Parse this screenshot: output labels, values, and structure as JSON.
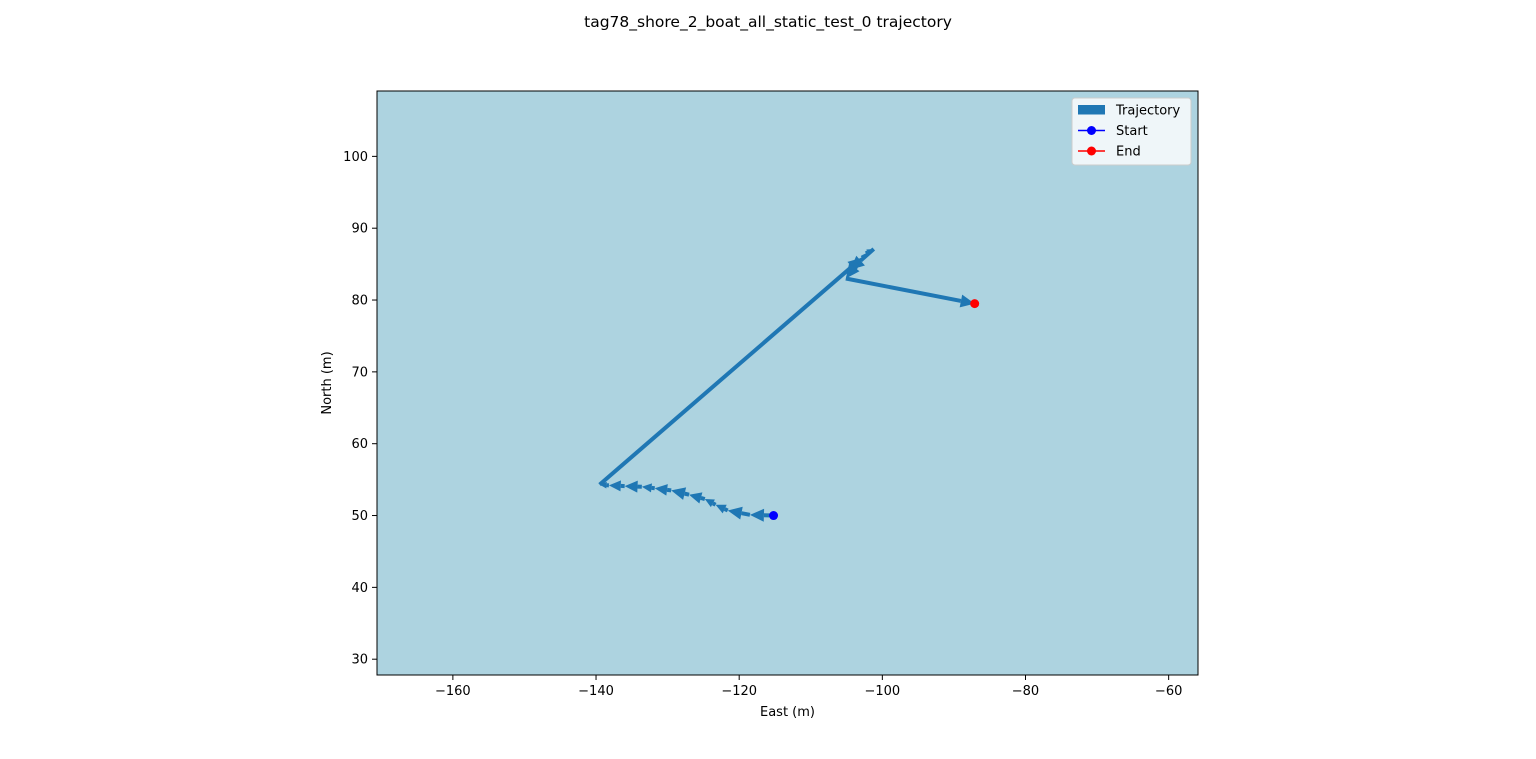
{
  "chart_data": {
    "type": "line",
    "title": "tag78_shore_2_boat_all_static_test_0 trajectory",
    "xlabel": "East (m)",
    "ylabel": "North (m)",
    "xlim": [
      -170.6,
      -55.9
    ],
    "ylim": [
      27.8,
      109.1
    ],
    "xticks": [
      -160,
      -140,
      -120,
      -100,
      -80,
      -60
    ],
    "yticks": [
      30,
      40,
      50,
      60,
      70,
      80,
      90,
      100
    ],
    "grid": false,
    "background_color": "#add3e0",
    "legend": {
      "position": "top-right",
      "entries": [
        {
          "label": "Trajectory",
          "marker": "patch",
          "color": "#1f77b4"
        },
        {
          "label": "Start",
          "marker": "line-dot",
          "color": "#0000ff"
        },
        {
          "label": "End",
          "marker": "line-dot",
          "color": "#ff0000"
        }
      ]
    },
    "series": [
      {
        "name": "Trajectory",
        "color": "#1f77b4",
        "style": "quiver",
        "points": [
          [
            -115.2,
            50.0
          ],
          [
            -118.5,
            50.1
          ],
          [
            -121.6,
            50.7
          ],
          [
            -123.3,
            51.5
          ],
          [
            -124.8,
            52.3
          ],
          [
            -127.0,
            52.9
          ],
          [
            -129.5,
            53.5
          ],
          [
            -131.8,
            53.8
          ],
          [
            -133.6,
            54.0
          ],
          [
            -136.0,
            54.1
          ],
          [
            -138.2,
            54.2
          ],
          [
            -139.5,
            54.3
          ],
          [
            -102.8,
            85.9
          ],
          [
            -102.3,
            86.5
          ],
          [
            -101.2,
            87.1
          ],
          [
            -104.5,
            84.2
          ],
          [
            -103.5,
            85.1
          ],
          [
            -105.1,
            83.0
          ],
          [
            -87.1,
            79.5
          ]
        ]
      }
    ],
    "start": {
      "x": -115.2,
      "y": 50.0,
      "color": "#0000ff"
    },
    "end": {
      "x": -87.1,
      "y": 79.5,
      "color": "#ff0000"
    }
  }
}
